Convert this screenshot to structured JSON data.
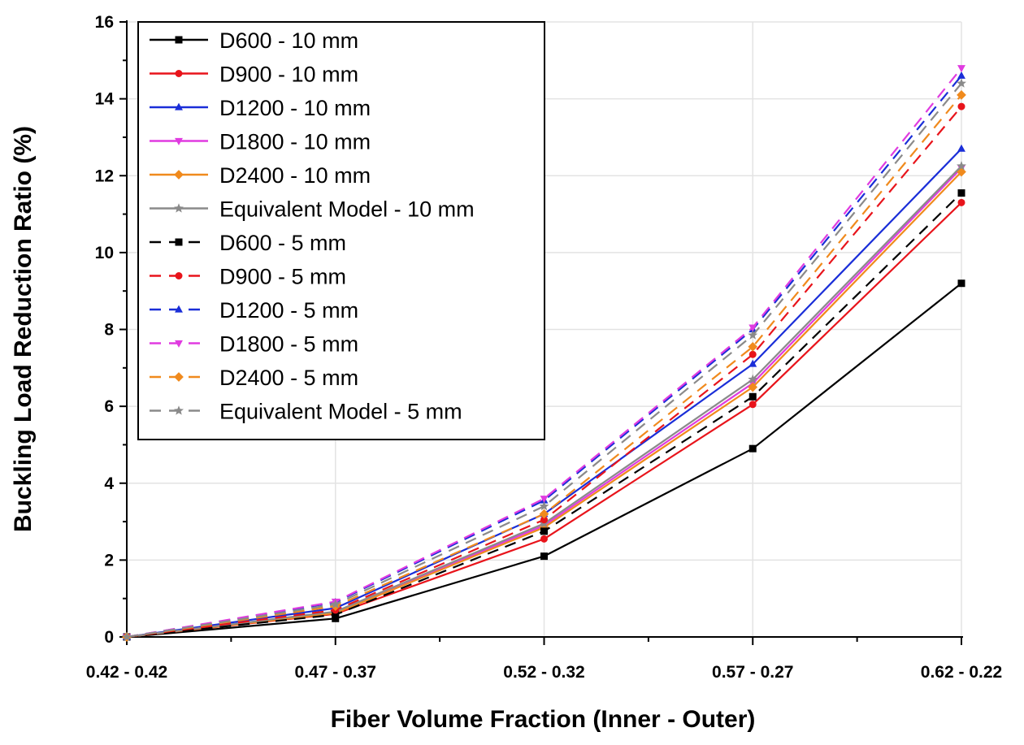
{
  "chart_data": {
    "type": "line",
    "title": "",
    "xlabel": "Fiber Volume Fraction (Inner - Outer)",
    "ylabel": "Buckling Load Reduction Ratio (%)",
    "categories": [
      "0.42 - 0.42",
      "0.47 - 0.37",
      "0.52 - 0.32",
      "0.57 - 0.27",
      "0.62 - 0.22"
    ],
    "ylim": [
      0,
      16
    ],
    "yticks": [
      "0",
      "2",
      "4",
      "6",
      "8",
      "10",
      "12",
      "14",
      "16"
    ],
    "grid": true,
    "legend_position": "top-left",
    "series": [
      {
        "name": "D600 - 10 mm",
        "color": "#000000",
        "dash": "solid",
        "marker": "square",
        "values": [
          0,
          0.48,
          2.1,
          4.9,
          9.2
        ]
      },
      {
        "name": "D900 - 10 mm",
        "color": "#e8141b",
        "dash": "solid",
        "marker": "circle",
        "values": [
          0,
          0.6,
          2.55,
          6.05,
          11.3
        ]
      },
      {
        "name": "D1200 - 10 mm",
        "color": "#1a2ed8",
        "dash": "solid",
        "marker": "triangle-up",
        "values": [
          0,
          0.75,
          3.2,
          7.1,
          12.7
        ]
      },
      {
        "name": "D1800 - 10 mm",
        "color": "#e03be0",
        "dash": "solid",
        "marker": "triangle-down",
        "values": [
          0,
          0.65,
          2.9,
          6.6,
          12.2
        ]
      },
      {
        "name": "D2400 - 10 mm",
        "color": "#f08a1d",
        "dash": "solid",
        "marker": "diamond",
        "values": [
          0,
          0.62,
          2.85,
          6.5,
          12.1
        ]
      },
      {
        "name": "Equivalent Model - 10 mm",
        "color": "#8a8a8a",
        "dash": "solid",
        "marker": "star",
        "values": [
          0,
          0.66,
          2.95,
          6.7,
          12.25
        ]
      },
      {
        "name": "D600 - 5 mm",
        "color": "#000000",
        "dash": "dashed",
        "marker": "square",
        "values": [
          0,
          0.58,
          2.75,
          6.25,
          11.55
        ]
      },
      {
        "name": "D900 - 5 mm",
        "color": "#e8141b",
        "dash": "dashed",
        "marker": "circle",
        "values": [
          0,
          0.7,
          3.05,
          7.35,
          13.8
        ]
      },
      {
        "name": "D1200 - 5 mm",
        "color": "#1a2ed8",
        "dash": "dashed",
        "marker": "triangle-up",
        "values": [
          0,
          0.9,
          3.55,
          8.0,
          14.6
        ]
      },
      {
        "name": "D1800 - 5 mm",
        "color": "#e03be0",
        "dash": "dashed",
        "marker": "triangle-down",
        "values": [
          0,
          0.92,
          3.6,
          8.05,
          14.8
        ]
      },
      {
        "name": "D2400 - 5 mm",
        "color": "#f08a1d",
        "dash": "dashed",
        "marker": "diamond",
        "values": [
          0,
          0.8,
          3.2,
          7.55,
          14.1
        ]
      },
      {
        "name": "Equivalent Model - 5 mm",
        "color": "#8a8a8a",
        "dash": "dashed",
        "marker": "star",
        "values": [
          0,
          0.85,
          3.4,
          7.85,
          14.4
        ]
      }
    ]
  }
}
